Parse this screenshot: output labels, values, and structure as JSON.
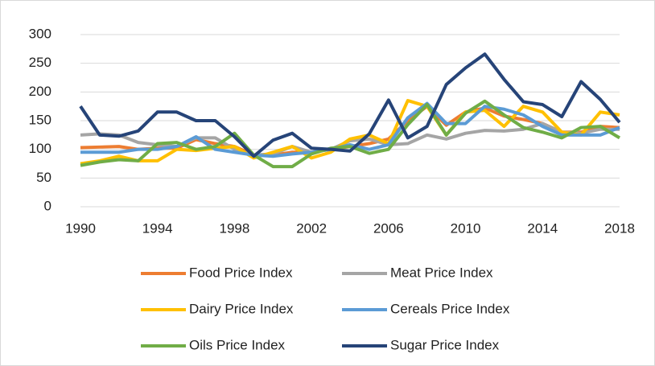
{
  "chart_data": {
    "type": "line",
    "x": [
      1990,
      1991,
      1992,
      1993,
      1994,
      1995,
      1996,
      1997,
      1998,
      1999,
      2000,
      2001,
      2002,
      2003,
      2004,
      2005,
      2006,
      2007,
      2008,
      2009,
      2010,
      2011,
      2012,
      2013,
      2014,
      2015,
      2016,
      2017,
      2018
    ],
    "xlim": [
      1990,
      2018
    ],
    "xticks": [
      1990,
      1994,
      1998,
      2002,
      2006,
      2010,
      2014,
      2018
    ],
    "ylim": [
      0,
      300
    ],
    "yticks": [
      0,
      50,
      100,
      150,
      200,
      250,
      300
    ],
    "grid": true,
    "series": [
      {
        "name": "Food Price Index",
        "color": "#ed7d31",
        "values": [
          103,
          104,
          105,
          100,
          102,
          102,
          117,
          110,
          105,
          90,
          90,
          95,
          95,
          100,
          105,
          110,
          118,
          150,
          175,
          142,
          165,
          172,
          158,
          152,
          145,
          130,
          130,
          140,
          138
        ]
      },
      {
        "name": "Meat Price Index",
        "color": "#a5a5a5",
        "values": [
          125,
          127,
          125,
          112,
          108,
          105,
          120,
          120,
          100,
          90,
          92,
          105,
          95,
          100,
          115,
          118,
          108,
          110,
          125,
          118,
          128,
          133,
          132,
          135,
          145,
          130,
          128,
          135,
          135
        ]
      },
      {
        "name": "Dairy Price Index",
        "color": "#ffc000",
        "values": [
          75,
          80,
          88,
          80,
          80,
          100,
          98,
          102,
          105,
          85,
          95,
          105,
          85,
          95,
          118,
          125,
          110,
          185,
          175,
          125,
          165,
          168,
          140,
          175,
          165,
          130,
          125,
          165,
          160
        ]
      },
      {
        "name": "Cereals Price Index",
        "color": "#5b9bd5",
        "values": [
          95,
          95,
          95,
          100,
          100,
          105,
          122,
          100,
          95,
          90,
          88,
          92,
          95,
          100,
          108,
          100,
          108,
          155,
          180,
          145,
          145,
          175,
          170,
          160,
          140,
          125,
          125,
          125,
          138
        ]
      },
      {
        "name": "Oils Price Index",
        "color": "#70ad47",
        "values": [
          72,
          78,
          82,
          80,
          110,
          112,
          100,
          105,
          128,
          90,
          70,
          70,
          92,
          102,
          105,
          93,
          100,
          143,
          178,
          125,
          163,
          184,
          160,
          138,
          130,
          120,
          138,
          140,
          120
        ]
      },
      {
        "name": "Sugar Price Index",
        "color": "#264478",
        "values": [
          175,
          125,
          123,
          132,
          165,
          165,
          150,
          150,
          122,
          88,
          116,
          128,
          102,
          100,
          97,
          127,
          186,
          120,
          140,
          213,
          242,
          266,
          222,
          183,
          178,
          157,
          218,
          187,
          147
        ]
      }
    ]
  }
}
